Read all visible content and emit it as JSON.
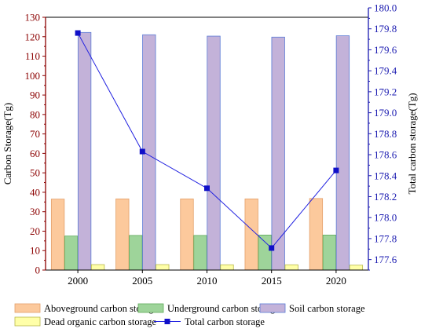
{
  "chart_data": {
    "type": "bar",
    "categories": [
      "2000",
      "2005",
      "2010",
      "2015",
      "2020"
    ],
    "series": [
      {
        "name": "Aboveground carbon storage",
        "type": "bar",
        "axis": "left",
        "color": "#fcc99c",
        "stroke": "#e3a06a",
        "values": [
          36.5,
          36.6,
          36.6,
          36.6,
          36.8
        ]
      },
      {
        "name": "Underground carbon storage",
        "type": "bar",
        "axis": "left",
        "color": "#9ed49a",
        "stroke": "#5faa5a",
        "values": [
          17.5,
          17.8,
          17.8,
          18.0,
          18.0
        ]
      },
      {
        "name": "Soil carbon storage",
        "type": "bar",
        "axis": "left",
        "color": "#c3b2d9",
        "stroke": "#5a7bd6",
        "values": [
          122.2,
          121.0,
          120.3,
          119.8,
          120.5
        ]
      },
      {
        "name": "Dead organic carbon storage",
        "type": "bar",
        "axis": "left",
        "color": "#ffffa8",
        "stroke": "#b8b848",
        "values": [
          2.8,
          2.8,
          2.7,
          2.7,
          2.5
        ]
      },
      {
        "name": "Total carbon storage",
        "type": "line",
        "axis": "right",
        "color": "#2020e0",
        "marker": "#1010c8",
        "values": [
          179.76,
          178.63,
          178.28,
          177.71,
          178.45
        ]
      }
    ],
    "ylabel": "Carbon Storage(Tg)",
    "y2label": "Total carbon storage(Tg)",
    "xlabel": "",
    "ylim": [
      0,
      130
    ],
    "y2lim": [
      177.5,
      180.0
    ],
    "yticks": [
      "0",
      "10",
      "20",
      "30",
      "40",
      "50",
      "60",
      "70",
      "80",
      "90",
      "100",
      "110",
      "120",
      "130"
    ],
    "y2ticks": [
      "177.6",
      "177.8",
      "178.0",
      "178.2",
      "178.4",
      "178.6",
      "178.8",
      "179.0",
      "179.2",
      "179.4",
      "179.6",
      "179.8",
      "180.0"
    ],
    "left_axis_color": "#8b0000",
    "right_axis_color": "#1a1ab0",
    "grid": false,
    "legend_position": "bottom"
  }
}
